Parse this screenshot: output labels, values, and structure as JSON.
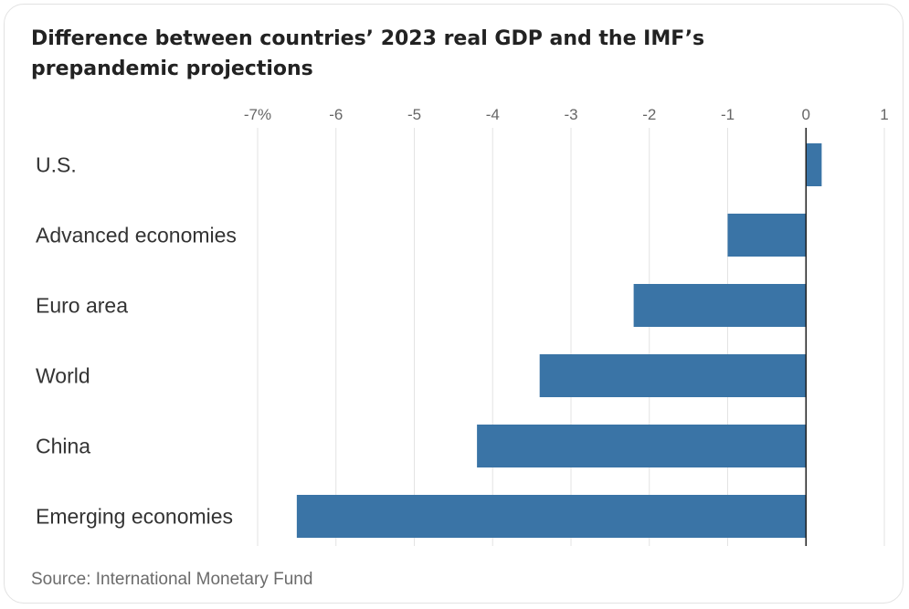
{
  "chart_data": {
    "type": "bar",
    "orientation": "horizontal",
    "title": "Difference between countries’ 2023 real GDP and the IMF’s prepandemic projections",
    "categories": [
      "U.S.",
      "Advanced economies",
      "Euro area",
      "World",
      "China",
      "Emerging economies"
    ],
    "values": [
      0.2,
      -1.0,
      -2.2,
      -3.4,
      -4.2,
      -6.5
    ],
    "x_ticks": [
      -7,
      -6,
      -5,
      -4,
      -3,
      -2,
      -1,
      0,
      1
    ],
    "x_tick_labels": [
      "-7%",
      "-6",
      "-5",
      "-4",
      "-3",
      "-2",
      "-1",
      "0",
      "1"
    ],
    "xlim": [
      -7,
      1
    ],
    "bar_color": "#3a74a6",
    "grid": true,
    "source": "Source: International Monetary Fund"
  }
}
